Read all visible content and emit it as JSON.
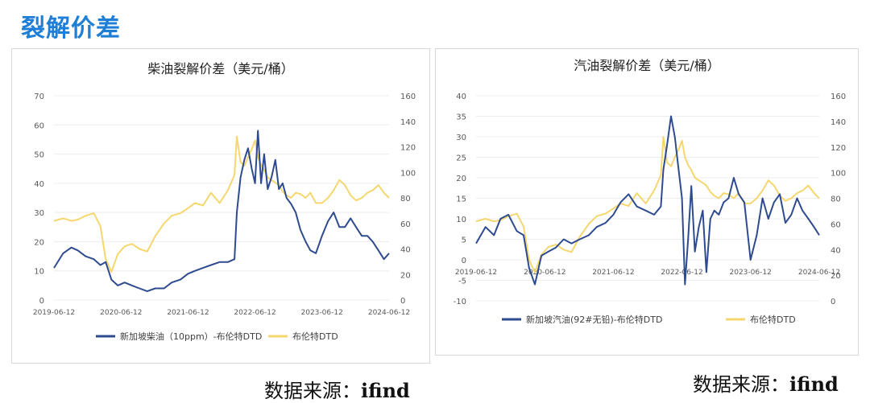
{
  "page": {
    "title": "裂解价差"
  },
  "source": [
    {
      "label": "数据来源：",
      "name": "ifind"
    },
    {
      "label": "数据来源：",
      "name": "ifind"
    }
  ],
  "chart_data": [
    {
      "type": "line",
      "title": "柴油裂解价差（美元/桶）",
      "x_type": "date",
      "xlim": [
        "2019-06-12",
        "2024-06-12"
      ],
      "x_ticks": [
        "2019-06-12",
        "2020-06-12",
        "2021-06-12",
        "2022-06-12",
        "2023-06-12",
        "2024-06-12"
      ],
      "ylim_left": [
        0,
        70
      ],
      "y_ticks_left": [
        0,
        10,
        20,
        30,
        40,
        50,
        60,
        70
      ],
      "ylim_right": [
        0,
        160
      ],
      "y_ticks_right": [
        0,
        20,
        40,
        60,
        80,
        100,
        120,
        140,
        160
      ],
      "legend_placement": "bottom",
      "series": [
        {
          "name": "新加坡柴油（10ppm）-布伦特DTD",
          "axis": "left",
          "color": "#2e4b8f",
          "x": [
            "2019-06-12",
            "2019-08-01",
            "2019-09-15",
            "2019-10-20",
            "2019-12-01",
            "2020-01-15",
            "2020-02-20",
            "2020-03-20",
            "2020-04-20",
            "2020-05-25",
            "2020-07-01",
            "2020-08-10",
            "2020-09-20",
            "2020-11-01",
            "2020-12-15",
            "2021-02-01",
            "2021-03-15",
            "2021-05-01",
            "2021-06-12",
            "2021-07-20",
            "2021-09-01",
            "2021-10-15",
            "2021-12-01",
            "2022-01-15",
            "2022-02-20",
            "2022-03-05",
            "2022-03-25",
            "2022-04-15",
            "2022-05-05",
            "2022-05-25",
            "2022-06-12",
            "2022-06-28",
            "2022-07-15",
            "2022-08-01",
            "2022-08-20",
            "2022-09-10",
            "2022-10-01",
            "2022-10-20",
            "2022-11-10",
            "2022-12-01",
            "2022-12-25",
            "2023-01-20",
            "2023-02-15",
            "2023-03-15",
            "2023-04-10",
            "2023-05-10",
            "2023-06-12",
            "2023-07-15",
            "2023-08-15",
            "2023-09-15",
            "2023-10-15",
            "2023-11-15",
            "2023-12-15",
            "2024-01-15",
            "2024-02-15",
            "2024-03-15",
            "2024-04-15",
            "2024-05-15",
            "2024-06-12"
          ],
          "values": [
            11,
            16,
            18,
            17,
            15,
            14,
            12,
            13,
            7,
            5,
            6,
            5,
            4,
            3,
            4,
            4,
            6,
            7,
            9,
            10,
            11,
            12,
            13,
            13,
            14,
            30,
            42,
            48,
            52,
            45,
            40,
            58,
            40,
            50,
            38,
            42,
            48,
            38,
            40,
            35,
            33,
            30,
            24,
            20,
            17,
            16,
            22,
            27,
            30,
            25,
            25,
            28,
            25,
            22,
            22,
            20,
            17,
            14,
            16
          ]
        },
        {
          "name": "布伦特DTD",
          "axis": "right",
          "color": "#f5d76e",
          "x": [
            "2019-06-12",
            "2019-08-01",
            "2019-09-15",
            "2019-10-20",
            "2019-12-01",
            "2020-01-15",
            "2020-02-20",
            "2020-03-20",
            "2020-04-20",
            "2020-05-25",
            "2020-07-01",
            "2020-08-10",
            "2020-09-20",
            "2020-11-01",
            "2020-12-15",
            "2021-02-01",
            "2021-03-15",
            "2021-05-01",
            "2021-06-12",
            "2021-07-20",
            "2021-09-01",
            "2021-10-15",
            "2021-12-01",
            "2022-01-15",
            "2022-02-20",
            "2022-03-05",
            "2022-03-25",
            "2022-04-15",
            "2022-05-05",
            "2022-05-25",
            "2022-06-12",
            "2022-06-28",
            "2022-07-15",
            "2022-08-01",
            "2022-08-20",
            "2022-09-10",
            "2022-10-01",
            "2022-10-20",
            "2022-11-10",
            "2022-12-01",
            "2022-12-25",
            "2023-01-20",
            "2023-02-15",
            "2023-03-15",
            "2023-04-10",
            "2023-05-10",
            "2023-06-12",
            "2023-07-15",
            "2023-08-15",
            "2023-09-15",
            "2023-10-15",
            "2023-11-15",
            "2023-12-15",
            "2024-01-15",
            "2024-02-15",
            "2024-03-15",
            "2024-04-15",
            "2024-05-15",
            "2024-06-12"
          ],
          "values": [
            62,
            64,
            62,
            63,
            66,
            68,
            58,
            32,
            22,
            36,
            42,
            44,
            40,
            38,
            50,
            60,
            66,
            68,
            72,
            76,
            74,
            84,
            76,
            86,
            98,
            128,
            108,
            105,
            112,
            118,
            125,
            112,
            106,
            102,
            96,
            94,
            92,
            90,
            85,
            82,
            80,
            84,
            83,
            80,
            84,
            76,
            76,
            80,
            86,
            94,
            90,
            82,
            78,
            80,
            84,
            86,
            90,
            84,
            80
          ]
        }
      ]
    },
    {
      "type": "line",
      "title": "汽油裂解价差（美元/桶）",
      "x_type": "date",
      "xlim": [
        "2019-06-12",
        "2024-06-12"
      ],
      "x_ticks": [
        "2019-06-12",
        "2020-06-12",
        "2021-06-12",
        "2022-06-12",
        "2023-06-12",
        "2024-06-12"
      ],
      "ylim_left": [
        -10,
        40
      ],
      "y_ticks_left": [
        -10,
        -5,
        0,
        5,
        10,
        15,
        20,
        25,
        30,
        35,
        40
      ],
      "ylim_right": [
        0,
        160
      ],
      "y_ticks_right": [
        0,
        20,
        40,
        60,
        80,
        100,
        120,
        140,
        160
      ],
      "legend_placement": "bottom",
      "series": [
        {
          "name": "新加坡汽油(92#无铅)-布伦特DTD",
          "axis": "left",
          "color": "#2e4b8f",
          "x": [
            "2019-06-12",
            "2019-08-01",
            "2019-09-15",
            "2019-10-20",
            "2019-12-01",
            "2020-01-15",
            "2020-02-20",
            "2020-03-20",
            "2020-04-20",
            "2020-05-25",
            "2020-07-01",
            "2020-08-10",
            "2020-09-20",
            "2020-11-01",
            "2020-12-15",
            "2021-02-01",
            "2021-03-15",
            "2021-05-01",
            "2021-06-12",
            "2021-07-20",
            "2021-09-01",
            "2021-10-15",
            "2021-12-01",
            "2022-01-15",
            "2022-02-20",
            "2022-03-05",
            "2022-03-25",
            "2022-04-15",
            "2022-05-05",
            "2022-05-25",
            "2022-06-12",
            "2022-06-28",
            "2022-07-15",
            "2022-08-01",
            "2022-08-20",
            "2022-09-10",
            "2022-10-01",
            "2022-10-20",
            "2022-11-10",
            "2022-12-01",
            "2022-12-25",
            "2023-01-20",
            "2023-02-15",
            "2023-03-15",
            "2023-04-10",
            "2023-05-10",
            "2023-06-12",
            "2023-07-15",
            "2023-08-15",
            "2023-09-15",
            "2023-10-15",
            "2023-11-15",
            "2023-12-15",
            "2024-01-15",
            "2024-02-15",
            "2024-03-15",
            "2024-04-15",
            "2024-05-15",
            "2024-06-12"
          ],
          "values": [
            4,
            8,
            6,
            10,
            11,
            7,
            6,
            -2,
            -6,
            1,
            2,
            3,
            5,
            4,
            5,
            6,
            8,
            9,
            11,
            14,
            16,
            13,
            12,
            11,
            13,
            22,
            28,
            35,
            30,
            22,
            15,
            -6,
            5,
            18,
            2,
            8,
            12,
            -3,
            10,
            12,
            11,
            14,
            15,
            20,
            16,
            14,
            0,
            6,
            15,
            10,
            14,
            16,
            9,
            11,
            15,
            12,
            10,
            8,
            6
          ]
        },
        {
          "name": "布伦特DTD",
          "axis": "right",
          "color": "#f5d76e",
          "x": [
            "2019-06-12",
            "2019-08-01",
            "2019-09-15",
            "2019-10-20",
            "2019-12-01",
            "2020-01-15",
            "2020-02-20",
            "2020-03-20",
            "2020-04-20",
            "2020-05-25",
            "2020-07-01",
            "2020-08-10",
            "2020-09-20",
            "2020-11-01",
            "2020-12-15",
            "2021-02-01",
            "2021-03-15",
            "2021-05-01",
            "2021-06-12",
            "2021-07-20",
            "2021-09-01",
            "2021-10-15",
            "2021-12-01",
            "2022-01-15",
            "2022-02-20",
            "2022-03-05",
            "2022-03-25",
            "2022-04-15",
            "2022-05-05",
            "2022-05-25",
            "2022-06-12",
            "2022-06-28",
            "2022-07-15",
            "2022-08-01",
            "2022-08-20",
            "2022-09-10",
            "2022-10-01",
            "2022-10-20",
            "2022-11-10",
            "2022-12-01",
            "2022-12-25",
            "2023-01-20",
            "2023-02-15",
            "2023-03-15",
            "2023-04-10",
            "2023-05-10",
            "2023-06-12",
            "2023-07-15",
            "2023-08-15",
            "2023-09-15",
            "2023-10-15",
            "2023-11-15",
            "2023-12-15",
            "2024-01-15",
            "2024-02-15",
            "2024-03-15",
            "2024-04-15",
            "2024-05-15",
            "2024-06-12"
          ],
          "values": [
            62,
            64,
            62,
            63,
            66,
            68,
            58,
            32,
            22,
            36,
            42,
            44,
            40,
            38,
            50,
            60,
            66,
            68,
            72,
            76,
            74,
            84,
            76,
            86,
            98,
            128,
            108,
            105,
            112,
            118,
            125,
            112,
            106,
            102,
            96,
            94,
            92,
            90,
            85,
            82,
            80,
            84,
            83,
            80,
            84,
            76,
            76,
            80,
            86,
            94,
            90,
            82,
            78,
            80,
            84,
            86,
            90,
            84,
            80
          ]
        }
      ]
    }
  ]
}
